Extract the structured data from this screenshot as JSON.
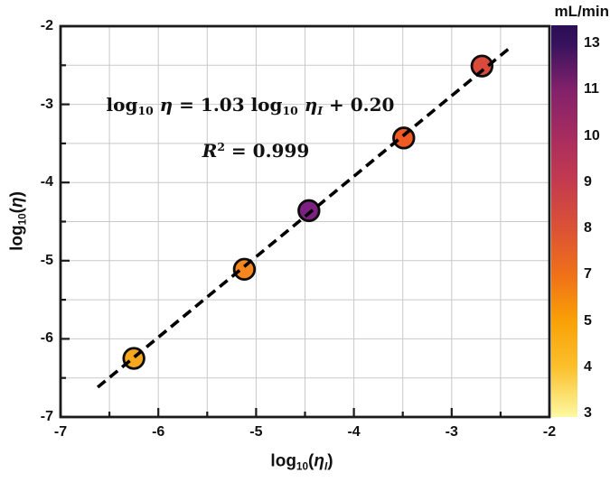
{
  "chart_data": {
    "type": "scatter",
    "title": "",
    "xlabel_text": "log10(η_I)",
    "ylabel_text": "log10(η)",
    "xlabel_tokens": [
      {
        "t": "log"
      },
      {
        "t": "10",
        "s": "sub"
      },
      {
        "t": "("
      },
      {
        "t": "η",
        "s": "it"
      },
      {
        "t": "I",
        "s": "subit"
      },
      {
        "t": ")"
      }
    ],
    "ylabel_tokens": [
      {
        "t": "log"
      },
      {
        "t": "10",
        "s": "sub"
      },
      {
        "t": "("
      },
      {
        "t": "η",
        "s": "it"
      },
      {
        "t": ")"
      }
    ],
    "xlim": [
      -7,
      -2
    ],
    "ylim": [
      -7,
      -2
    ],
    "x_tick_labels": [
      "-7",
      "-6",
      "-5",
      "-4",
      "-3",
      "-2"
    ],
    "y_tick_labels": [
      "-2",
      "-3",
      "-4",
      "-5",
      "-6",
      "-7"
    ],
    "x_tick_values": [
      -7,
      -6,
      -5,
      -4,
      -3,
      -2
    ],
    "y_tick_values": [
      -2,
      -3,
      -4,
      -5,
      -6,
      -7
    ],
    "grid": true,
    "grid_step": 0.5,
    "grid_color": "#c9c9c9",
    "frame_color": "#1a1a1a",
    "points": [
      {
        "x": -6.25,
        "y": -6.25,
        "color": "#F5A81E",
        "flow_ml_min_est": 5
      },
      {
        "x": -5.12,
        "y": -5.11,
        "color": "#F6861E",
        "flow_ml_min_est": 7
      },
      {
        "x": -4.46,
        "y": -4.36,
        "color": "#7C2182",
        "flow_ml_min_est": 11
      },
      {
        "x": -3.49,
        "y": -3.43,
        "color": "#F05B24",
        "flow_ml_min_est": 8
      },
      {
        "x": -2.69,
        "y": -2.51,
        "color": "#D9493C",
        "flow_ml_min_est": 9
      }
    ],
    "marker_edge_color": "#0d0d0d",
    "fit": {
      "slope": 1.03,
      "intercept": 0.2,
      "r2": 0.999,
      "x_range": [
        -6.62,
        -2.39
      ],
      "line_style": "dashed",
      "line_color": "#000000"
    },
    "annotation_equation_text": "log10 η = 1.03 log10 ηI + 0.20",
    "annotation_equation_tokens": [
      {
        "t": "log"
      },
      {
        "t": "10",
        "s": "sub"
      },
      {
        "t": " "
      },
      {
        "t": "η",
        "s": "it"
      },
      {
        "t": " = 1.03 "
      },
      {
        "t": "log"
      },
      {
        "t": "10",
        "s": "sub"
      },
      {
        "t": " "
      },
      {
        "t": "η",
        "s": "it"
      },
      {
        "t": "I",
        "s": "subit"
      },
      {
        "t": " + 0.20"
      }
    ],
    "annotation_r2_text": "R² = 0.999",
    "annotation_r2_tokens": [
      {
        "t": "R",
        "s": "it"
      },
      {
        "t": "2",
        "s": "sup"
      },
      {
        "t": " = 0.999"
      }
    ],
    "colorbar": {
      "title": "mL/min",
      "tick_labels": [
        "13",
        "11",
        "10",
        "9",
        "8",
        "7",
        "5",
        "4",
        "3"
      ],
      "colormap": "inferno_reversed",
      "gradient_stops": [
        {
          "pos": 0,
          "color": "#2A0E54"
        },
        {
          "pos": 4.6,
          "color": "#36125D"
        },
        {
          "pos": 16.4,
          "color": "#82216B"
        },
        {
          "pos": 28.1,
          "color": "#A62C60"
        },
        {
          "pos": 40.1,
          "color": "#C43B4E"
        },
        {
          "pos": 51.6,
          "color": "#DB5136"
        },
        {
          "pos": 63.6,
          "color": "#EF7019"
        },
        {
          "pos": 75.3,
          "color": "#F9A006"
        },
        {
          "pos": 87.3,
          "color": "#FBC02C"
        },
        {
          "pos": 100,
          "color": "#FCF9A3"
        }
      ]
    }
  }
}
